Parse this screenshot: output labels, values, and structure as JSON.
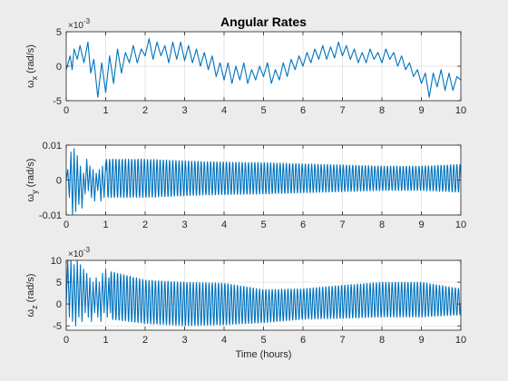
{
  "chart_data": [
    {
      "type": "line",
      "title": "Angular Rates",
      "ylabel_base": "ω",
      "ylabel_sub": "x",
      "ylabel_unit": " (rad/s)",
      "xlabel": "",
      "exponent_base": "×10",
      "exponent_power": "-3",
      "xlim": [
        0,
        10
      ],
      "ylim": [
        -5,
        5
      ],
      "xticks": [
        "0",
        "1",
        "2",
        "3",
        "4",
        "5",
        "6",
        "7",
        "8",
        "9",
        "10"
      ],
      "yticks": [
        {
          "value": -5,
          "label": "-5"
        },
        {
          "value": 0,
          "label": "0"
        },
        {
          "value": 5,
          "label": "5"
        }
      ],
      "grid": true,
      "line_color": "#0072bd",
      "series": [
        {
          "x": [
            0,
            0.1,
            0.15,
            0.2,
            0.28,
            0.35,
            0.45,
            0.55,
            0.62,
            0.7,
            0.8,
            0.9,
            1.0,
            1.1,
            1.2,
            1.3,
            1.4,
            1.5,
            1.6,
            1.7,
            1.8,
            1.9,
            2.0,
            2.1,
            2.2,
            2.3,
            2.4,
            2.5,
            2.6,
            2.7,
            2.8,
            2.9,
            3.0,
            3.1,
            3.2,
            3.3,
            3.4,
            3.5,
            3.6,
            3.7,
            3.8,
            3.9,
            4.0,
            4.1,
            4.2,
            4.3,
            4.4,
            4.5,
            4.6,
            4.7,
            4.8,
            4.9,
            5.0,
            5.1,
            5.2,
            5.3,
            5.4,
            5.5,
            5.6,
            5.7,
            5.8,
            5.9,
            6.0,
            6.1,
            6.2,
            6.3,
            6.4,
            6.5,
            6.6,
            6.7,
            6.8,
            6.9,
            7.0,
            7.1,
            7.2,
            7.3,
            7.4,
            7.5,
            7.6,
            7.7,
            7.8,
            7.9,
            8.0,
            8.1,
            8.2,
            8.3,
            8.4,
            8.5,
            8.6,
            8.7,
            8.8,
            8.9,
            9.0,
            9.1,
            9.2,
            9.3,
            9.4,
            9.5,
            9.6,
            9.7,
            9.8,
            9.9,
            10.0
          ],
          "y": [
            -0.5,
            1.5,
            -0.5,
            2.5,
            1.0,
            3.0,
            0.5,
            3.5,
            -1.0,
            1.0,
            -4.5,
            0.5,
            -3.8,
            1.5,
            -2.5,
            2.5,
            -1.0,
            2.0,
            0.5,
            3.0,
            0.5,
            2.5,
            1.5,
            4.0,
            1.0,
            3.5,
            1.5,
            3.0,
            0.5,
            3.5,
            1.0,
            3.5,
            0.8,
            3.0,
            0.5,
            2.5,
            0.0,
            2.0,
            -0.5,
            1.5,
            -1.5,
            0.5,
            -2.0,
            0.5,
            -2.5,
            0.0,
            -2.0,
            0.5,
            -2.5,
            -0.5,
            -2.0,
            0.0,
            -1.5,
            0.5,
            -2.5,
            -0.5,
            -2.0,
            0.5,
            -1.5,
            1.0,
            -0.5,
            1.5,
            0.0,
            2.0,
            0.5,
            2.5,
            1.0,
            3.0,
            1.0,
            2.8,
            1.2,
            3.5,
            1.5,
            3.0,
            1.0,
            2.5,
            0.5,
            2.0,
            0.5,
            2.5,
            1.0,
            2.0,
            0.5,
            2.5,
            1.0,
            2.0,
            0.0,
            1.5,
            -0.5,
            0.5,
            -1.5,
            -0.5,
            -2.5,
            -1.0,
            -4.5,
            -1.0,
            -3.0,
            -0.5,
            -3.5,
            -1.0,
            -3.5,
            -1.5,
            -2.0
          ]
        }
      ]
    },
    {
      "type": "line",
      "title": "",
      "ylabel_base": "ω",
      "ylabel_sub": "y",
      "ylabel_unit": " (rad/s)",
      "xlabel": "",
      "exponent_base": "",
      "exponent_power": "",
      "xlim": [
        0,
        10
      ],
      "ylim": [
        -0.01,
        0.01
      ],
      "xticks": [
        "0",
        "1",
        "2",
        "3",
        "4",
        "5",
        "6",
        "7",
        "8",
        "9",
        "10"
      ],
      "yticks": [
        {
          "value": -0.01,
          "label": "-0.01"
        },
        {
          "value": 0,
          "label": "0"
        },
        {
          "value": 0.01,
          "label": "0.01"
        }
      ],
      "grid": true,
      "line_color": "#0072bd",
      "series": [
        {
          "x": [
            0,
            0.04,
            0.08,
            0.12,
            0.16,
            0.2,
            0.24,
            0.28,
            0.32,
            0.36,
            0.4,
            0.44,
            0.48,
            0.52,
            0.56,
            0.6,
            0.64,
            0.68,
            0.72,
            0.76,
            0.8,
            0.84,
            0.88,
            0.92,
            0.96,
            1.0
          ],
          "y": [
            0.0,
            0.003,
            -0.005,
            0.008,
            -0.01,
            0.009,
            -0.009,
            0.007,
            -0.007,
            0.004,
            -0.008,
            0.002,
            -0.004,
            0.006,
            -0.003,
            0.004,
            -0.005,
            0.003,
            -0.006,
            0.002,
            -0.003,
            0.003,
            -0.006,
            0.004,
            -0.005,
            0.005
          ]
        }
      ],
      "oscillation": {
        "x_start": 1.0,
        "x_end": 10.0,
        "cycles_per_hour": 12.5,
        "envelope": [
          {
            "x": 1.0,
            "amp": 0.0055
          },
          {
            "x": 2.0,
            "amp": 0.0055
          },
          {
            "x": 3.5,
            "amp": 0.0048
          },
          {
            "x": 5.0,
            "amp": 0.0045
          },
          {
            "x": 6.5,
            "amp": 0.004
          },
          {
            "x": 8.0,
            "amp": 0.0035
          },
          {
            "x": 9.0,
            "amp": 0.0035
          },
          {
            "x": 10.0,
            "amp": 0.004
          }
        ],
        "offset": [
          {
            "x": 1.0,
            "off": 0.0005
          },
          {
            "x": 10.0,
            "off": 0.0005
          }
        ]
      }
    },
    {
      "type": "line",
      "title": "",
      "ylabel_base": "ω",
      "ylabel_sub": "z",
      "ylabel_unit": " (rad/s)",
      "xlabel": "Time (hours)",
      "exponent_base": "×10",
      "exponent_power": "-3",
      "xlim": [
        0,
        10
      ],
      "ylim": [
        -6,
        10
      ],
      "xticks": [
        "0",
        "1",
        "2",
        "3",
        "4",
        "5",
        "6",
        "7",
        "8",
        "9",
        "10"
      ],
      "yticks": [
        {
          "value": -5,
          "label": "-5"
        },
        {
          "value": 0,
          "label": "0"
        },
        {
          "value": 5,
          "label": "5"
        },
        {
          "value": 10,
          "label": "10"
        }
      ],
      "grid": true,
      "line_color": "#0072bd",
      "series": [
        {
          "x": [
            0,
            0.04,
            0.08,
            0.12,
            0.16,
            0.2,
            0.24,
            0.28,
            0.32,
            0.36,
            0.4,
            0.44,
            0.48,
            0.52,
            0.56,
            0.6,
            0.64,
            0.68,
            0.72,
            0.76,
            0.8,
            0.84,
            0.88,
            0.92,
            0.96,
            1.0,
            1.04,
            1.08,
            1.12
          ],
          "y": [
            0,
            10,
            -3,
            10,
            -4,
            9,
            -5,
            10,
            -3,
            9,
            -4,
            8,
            -2,
            7,
            -3,
            6,
            -4,
            5,
            -2,
            6,
            -3,
            5,
            -4,
            7,
            -2,
            8,
            -3,
            6,
            -2
          ]
        }
      ],
      "oscillation": {
        "x_start": 1.12,
        "x_end": 10.0,
        "cycles_per_hour": 12.5,
        "envelope": [
          {
            "x": 1.12,
            "amp": 5.5
          },
          {
            "x": 2.0,
            "amp": 5.0
          },
          {
            "x": 3.0,
            "amp": 5.0
          },
          {
            "x": 4.0,
            "amp": 4.8
          },
          {
            "x": 5.0,
            "amp": 3.8
          },
          {
            "x": 6.0,
            "amp": 3.5
          },
          {
            "x": 7.0,
            "amp": 3.8
          },
          {
            "x": 8.0,
            "amp": 4.0
          },
          {
            "x": 9.0,
            "amp": 4.0
          },
          {
            "x": 10.0,
            "amp": 3.0
          }
        ],
        "offset": [
          {
            "x": 1.12,
            "off": 2.0
          },
          {
            "x": 2.0,
            "off": 0.5
          },
          {
            "x": 3.0,
            "off": 0.0
          },
          {
            "x": 4.0,
            "off": 0.0
          },
          {
            "x": 5.0,
            "off": -0.5
          },
          {
            "x": 6.0,
            "off": 0.0
          },
          {
            "x": 7.0,
            "off": 0.5
          },
          {
            "x": 8.0,
            "off": 1.0
          },
          {
            "x": 9.0,
            "off": 1.0
          },
          {
            "x": 10.0,
            "off": 0.5
          }
        ]
      }
    }
  ]
}
